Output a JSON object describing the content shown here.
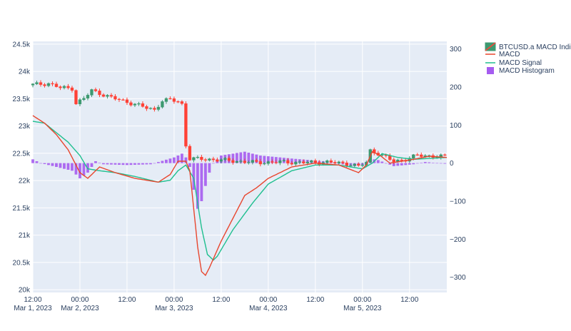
{
  "chart_data": {
    "type": "candlestick",
    "title": "",
    "xlabel": "",
    "ylabel_left": "",
    "ylabel_right": "",
    "x_range": [
      "2023-03-01T12:00",
      "2023-03-05T21:30"
    ],
    "ylim_left": [
      19950,
      24550
    ],
    "ylim_right": [
      -340,
      320
    ],
    "grid": true,
    "legend_placement": "top-right",
    "x_ticks": [
      {
        "t": "2023-03-01T12:00",
        "line1": "12:00",
        "line2": "Mar 1, 2023"
      },
      {
        "t": "2023-03-02T00:00",
        "line1": "00:00",
        "line2": "Mar 2, 2023"
      },
      {
        "t": "2023-03-02T12:00",
        "line1": "12:00",
        "line2": ""
      },
      {
        "t": "2023-03-03T00:00",
        "line1": "00:00",
        "line2": "Mar 3, 2023"
      },
      {
        "t": "2023-03-03T12:00",
        "line1": "12:00",
        "line2": ""
      },
      {
        "t": "2023-03-04T00:00",
        "line1": "00:00",
        "line2": "Mar 4, 2023"
      },
      {
        "t": "2023-03-04T12:00",
        "line1": "12:00",
        "line2": ""
      },
      {
        "t": "2023-03-05T00:00",
        "line1": "00:00",
        "line2": "Mar 5, 2023"
      },
      {
        "t": "2023-03-05T12:00",
        "line1": "12:00",
        "line2": ""
      }
    ],
    "y_ticks_left": [
      {
        "v": 20000,
        "label": "20k"
      },
      {
        "v": 20500,
        "label": "20.5k"
      },
      {
        "v": 21000,
        "label": "21k"
      },
      {
        "v": 21500,
        "label": "21.5k"
      },
      {
        "v": 22000,
        "label": "22k"
      },
      {
        "v": 22500,
        "label": "22.5k"
      },
      {
        "v": 23000,
        "label": "23k"
      },
      {
        "v": 23500,
        "label": "23.5k"
      },
      {
        "v": 24000,
        "label": "24k"
      },
      {
        "v": 24500,
        "label": "24.5k"
      }
    ],
    "y_ticks_right": [
      {
        "v": -300,
        "label": "−300"
      },
      {
        "v": -200,
        "label": "−200"
      },
      {
        "v": -100,
        "label": "−100"
      },
      {
        "v": 0,
        "label": "0"
      },
      {
        "v": 100,
        "label": "100"
      },
      {
        "v": 200,
        "label": "200"
      },
      {
        "v": 300,
        "label": "300"
      }
    ],
    "series": [
      {
        "name": "BTCUSD.a MACD Indicator",
        "type": "candlestick",
        "axis": "left",
        "increasing_color": "#3d9970",
        "decreasing_color": "#ff4136"
      },
      {
        "name": "MACD",
        "type": "line",
        "axis": "right",
        "color": "#e8462e"
      },
      {
        "name": "MACD Signal",
        "type": "line",
        "axis": "right",
        "color": "#1fbf8f"
      },
      {
        "name": "MACD Histogram",
        "type": "bar",
        "axis": "right",
        "color": "#a55cf0"
      }
    ],
    "price_anchors": [
      [
        "2023-03-01T12:00",
        23750
      ],
      [
        "2023-03-01T17:00",
        23780
      ],
      [
        "2023-03-01T20:00",
        23700
      ],
      [
        "2023-03-01T23:00",
        23690
      ],
      [
        "2023-03-02T00:00",
        23420
      ],
      [
        "2023-03-02T02:00",
        23500
      ],
      [
        "2023-03-02T04:00",
        23650
      ],
      [
        "2023-03-02T06:00",
        23600
      ],
      [
        "2023-03-02T09:00",
        23520
      ],
      [
        "2023-03-02T12:00",
        23460
      ],
      [
        "2023-03-02T15:00",
        23400
      ],
      [
        "2023-03-02T18:00",
        23330
      ],
      [
        "2023-03-02T20:00",
        23300
      ],
      [
        "2023-03-02T22:00",
        23460
      ],
      [
        "2023-03-03T00:00",
        23480
      ],
      [
        "2023-03-03T02:00",
        23450
      ],
      [
        "2023-03-03T03:00",
        23400
      ],
      [
        "2023-03-03T04:00",
        22650
      ],
      [
        "2023-03-03T05:00",
        22400
      ],
      [
        "2023-03-03T10:00",
        22390
      ],
      [
        "2023-03-03T16:00",
        22360
      ],
      [
        "2023-03-03T22:00",
        22330
      ],
      [
        "2023-03-04T04:00",
        22340
      ],
      [
        "2023-03-04T10:00",
        22330
      ],
      [
        "2023-03-04T16:00",
        22340
      ],
      [
        "2023-03-04T22:00",
        22300
      ],
      [
        "2023-03-05T00:00",
        22260
      ],
      [
        "2023-03-05T02:00",
        22330
      ],
      [
        "2023-03-05T03:00",
        22550
      ],
      [
        "2023-03-05T05:00",
        22500
      ],
      [
        "2023-03-05T09:00",
        22350
      ],
      [
        "2023-03-05T12:00",
        22390
      ],
      [
        "2023-03-05T15:00",
        22460
      ],
      [
        "2023-03-05T21:30",
        22440
      ]
    ],
    "macd_anchors": [
      [
        "2023-03-01T12:00",
        125
      ],
      [
        "2023-03-01T15:00",
        105
      ],
      [
        "2023-03-01T18:00",
        75
      ],
      [
        "2023-03-01T21:00",
        35
      ],
      [
        "2023-03-02T00:00",
        -25
      ],
      [
        "2023-03-02T02:00",
        -40
      ],
      [
        "2023-03-02T05:00",
        -10
      ],
      [
        "2023-03-02T09:00",
        -25
      ],
      [
        "2023-03-02T14:00",
        -40
      ],
      [
        "2023-03-02T20:00",
        -50
      ],
      [
        "2023-03-02T23:00",
        -30
      ],
      [
        "2023-03-03T01:00",
        5
      ],
      [
        "2023-03-03T03:00",
        5
      ],
      [
        "2023-03-03T04:00",
        -20
      ],
      [
        "2023-03-03T05:00",
        -120
      ],
      [
        "2023-03-03T06:00",
        -220
      ],
      [
        "2023-03-03T07:00",
        -285
      ],
      [
        "2023-03-03T08:00",
        -295
      ],
      [
        "2023-03-03T09:00",
        -275
      ],
      [
        "2023-03-03T12:00",
        -205
      ],
      [
        "2023-03-03T15:00",
        -145
      ],
      [
        "2023-03-03T18:00",
        -85
      ],
      [
        "2023-03-03T21:00",
        -65
      ],
      [
        "2023-03-04T00:00",
        -40
      ],
      [
        "2023-03-04T06:00",
        -10
      ],
      [
        "2023-03-04T12:00",
        0
      ],
      [
        "2023-03-04T18:00",
        -5
      ],
      [
        "2023-03-04T23:00",
        -25
      ],
      [
        "2023-03-05T01:00",
        -5
      ],
      [
        "2023-03-05T02:30",
        30
      ],
      [
        "2023-03-05T04:30",
        20
      ],
      [
        "2023-03-05T07:00",
        0
      ],
      [
        "2023-03-05T10:00",
        5
      ],
      [
        "2023-03-05T13:00",
        10
      ],
      [
        "2023-03-05T17:00",
        18
      ],
      [
        "2023-03-05T21:30",
        15
      ]
    ],
    "signal_anchors": [
      [
        "2023-03-01T12:00",
        110
      ],
      [
        "2023-03-01T15:00",
        105
      ],
      [
        "2023-03-01T18:00",
        80
      ],
      [
        "2023-03-01T21:00",
        55
      ],
      [
        "2023-03-02T00:00",
        20
      ],
      [
        "2023-03-02T02:00",
        -15
      ],
      [
        "2023-03-02T05:00",
        -20
      ],
      [
        "2023-03-02T09:00",
        -25
      ],
      [
        "2023-03-02T14:00",
        -35
      ],
      [
        "2023-03-02T20:00",
        -50
      ],
      [
        "2023-03-02T23:00",
        -45
      ],
      [
        "2023-03-03T01:00",
        -20
      ],
      [
        "2023-03-03T03:00",
        -5
      ],
      [
        "2023-03-03T05:00",
        -40
      ],
      [
        "2023-03-03T07:00",
        -170
      ],
      [
        "2023-03-03T08:30",
        -240
      ],
      [
        "2023-03-03T10:00",
        -255
      ],
      [
        "2023-03-03T11:00",
        -245
      ],
      [
        "2023-03-03T15:00",
        -175
      ],
      [
        "2023-03-03T20:00",
        -105
      ],
      [
        "2023-03-04T00:00",
        -55
      ],
      [
        "2023-03-04T06:00",
        -20
      ],
      [
        "2023-03-04T12:00",
        -5
      ],
      [
        "2023-03-04T18:00",
        -5
      ],
      [
        "2023-03-05T00:00",
        -15
      ],
      [
        "2023-03-05T02:30",
        0
      ],
      [
        "2023-03-05T05:00",
        25
      ],
      [
        "2023-03-05T09:00",
        15
      ],
      [
        "2023-03-05T13:00",
        10
      ],
      [
        "2023-03-05T21:30",
        15
      ]
    ],
    "hist_anchors": [
      [
        "2023-03-01T12:00",
        10
      ],
      [
        "2023-03-01T14:00",
        0
      ],
      [
        "2023-03-01T18:00",
        -10
      ],
      [
        "2023-03-01T22:00",
        -20
      ],
      [
        "2023-03-02T00:00",
        -40
      ],
      [
        "2023-03-02T02:00",
        -25
      ],
      [
        "2023-03-02T04:00",
        5
      ],
      [
        "2023-03-02T06:00",
        -3
      ],
      [
        "2023-03-02T12:00",
        -5
      ],
      [
        "2023-03-02T18:00",
        -3
      ],
      [
        "2023-03-03T00:00",
        15
      ],
      [
        "2023-03-03T02:00",
        25
      ],
      [
        "2023-03-03T03:00",
        15
      ],
      [
        "2023-03-03T04:00",
        -10
      ],
      [
        "2023-03-03T05:00",
        -70
      ],
      [
        "2023-03-03T06:00",
        -120
      ],
      [
        "2023-03-03T07:00",
        -100
      ],
      [
        "2023-03-03T08:00",
        -60
      ],
      [
        "2023-03-03T09:00",
        -25
      ],
      [
        "2023-03-03T10:00",
        0
      ],
      [
        "2023-03-03T12:00",
        20
      ],
      [
        "2023-03-03T18:00",
        30
      ],
      [
        "2023-03-03T22:00",
        20
      ],
      [
        "2023-03-04T06:00",
        12
      ],
      [
        "2023-03-04T14:00",
        5
      ],
      [
        "2023-03-04T22:00",
        -8
      ],
      [
        "2023-03-05T00:00",
        -5
      ],
      [
        "2023-03-05T02:00",
        12
      ],
      [
        "2023-03-05T04:00",
        8
      ],
      [
        "2023-03-05T08:00",
        -8
      ],
      [
        "2023-03-05T13:00",
        -3
      ],
      [
        "2023-03-05T16:00",
        3
      ],
      [
        "2023-03-05T21:30",
        -2
      ]
    ]
  }
}
